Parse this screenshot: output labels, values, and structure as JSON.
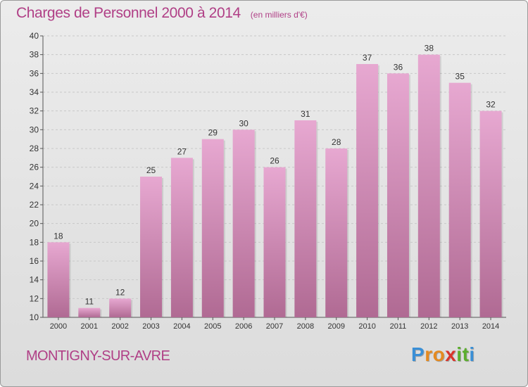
{
  "title": "Charges de Personnel 2000 à 2014",
  "unit_note": "(en milliers d'€)",
  "commune": "MONTIGNY-SUR-AVRE",
  "logo": {
    "letters": [
      {
        "ch": "P",
        "color": "#3a8fd6"
      },
      {
        "ch": "r",
        "color": "#e58a1f"
      },
      {
        "ch": "o",
        "color": "#e58a1f"
      },
      {
        "ch": "x",
        "color": "#d9342b"
      },
      {
        "ch": "i",
        "color": "#5cae2e"
      },
      {
        "ch": "t",
        "color": "#5cae2e"
      },
      {
        "ch": "i",
        "color": "#3a8fd6"
      }
    ]
  },
  "colors": {
    "accent": "#b03f86",
    "bar_top": "#e7a8d1",
    "bar_bottom": "#b06a93",
    "grid": "#c8c8c8",
    "axis": "#555555",
    "text": "#333333"
  },
  "chart_data": {
    "type": "bar",
    "title": "Charges de Personnel 2000 à 2014",
    "subtitle": "(en milliers d'€)",
    "categories": [
      "2000",
      "2001",
      "2002",
      "2003",
      "2004",
      "2005",
      "2006",
      "2007",
      "2008",
      "2009",
      "2010",
      "2011",
      "2012",
      "2013",
      "2014"
    ],
    "values": [
      18,
      11,
      12,
      25,
      27,
      29,
      30,
      26,
      31,
      28,
      37,
      36,
      38,
      35,
      32
    ],
    "ylim": [
      10,
      40
    ],
    "yticks": [
      10,
      12,
      14,
      16,
      18,
      20,
      22,
      24,
      26,
      28,
      30,
      32,
      34,
      36,
      38,
      40
    ],
    "grid": true,
    "data_labels": true,
    "xlabel": "",
    "ylabel": ""
  }
}
